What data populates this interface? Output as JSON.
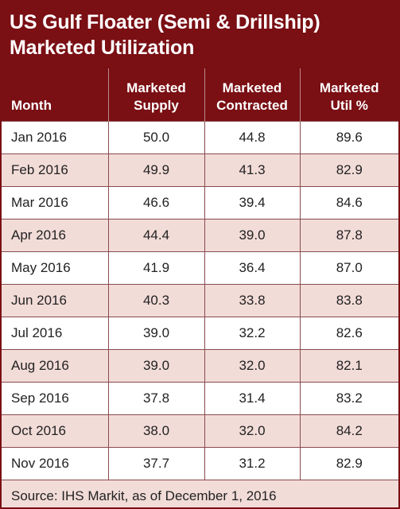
{
  "chart_data": {
    "type": "table",
    "title_lines": [
      "US Gulf Floater (Semi & Drillship)",
      "Marketed Utilization"
    ],
    "columns": [
      [
        "Month"
      ],
      [
        "Marketed",
        "Supply"
      ],
      [
        "Marketed",
        "Contracted"
      ],
      [
        "Marketed",
        "Util %"
      ]
    ],
    "rows": [
      [
        "Jan 2016",
        "50.0",
        "44.8",
        "89.6"
      ],
      [
        "Feb 2016",
        "49.9",
        "41.3",
        "82.9"
      ],
      [
        "Mar 2016",
        "46.6",
        "39.4",
        "84.6"
      ],
      [
        "Apr 2016",
        "44.4",
        "39.0",
        "87.8"
      ],
      [
        "May 2016",
        "41.9",
        "36.4",
        "87.0"
      ],
      [
        "Jun 2016",
        "40.3",
        "33.8",
        "83.8"
      ],
      [
        "Jul 2016",
        "39.0",
        "32.2",
        "82.6"
      ],
      [
        "Aug 2016",
        "39.0",
        "32.0",
        "82.1"
      ],
      [
        "Sep 2016",
        "37.8",
        "31.4",
        "83.2"
      ],
      [
        "Oct 2016",
        "38.0",
        "32.0",
        "84.2"
      ],
      [
        "Nov 2016",
        "37.7",
        "31.2",
        "82.9"
      ]
    ],
    "source": "Source: IHS Markit, as of December 1, 2016",
    "colors": {
      "header": "#7a0f14",
      "row_alt": "#f2dcd8",
      "row": "#ffffff",
      "grid": "#8a4a4e"
    }
  }
}
